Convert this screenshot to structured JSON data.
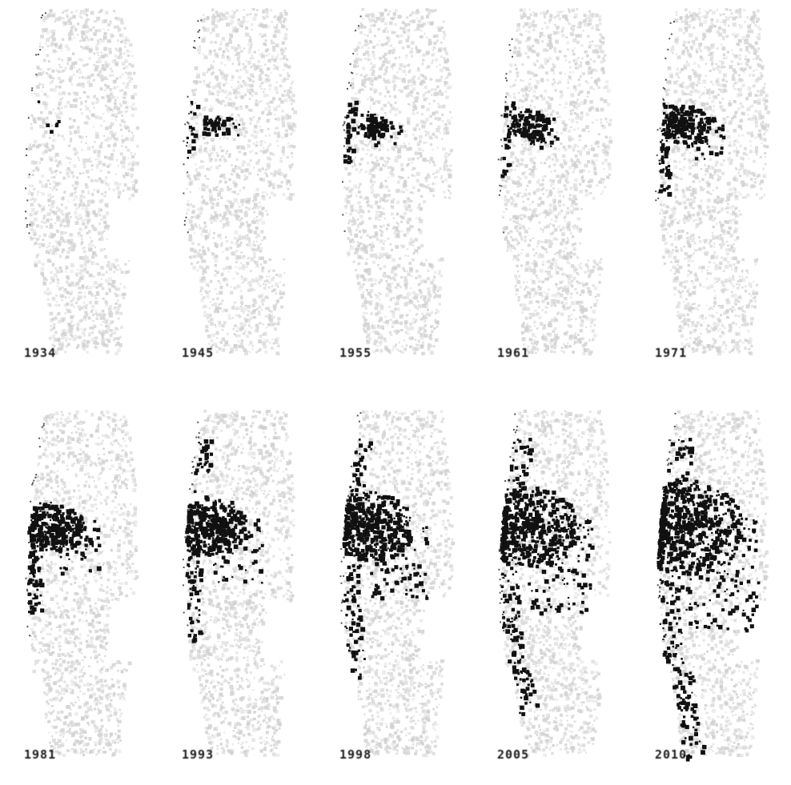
{
  "figure": {
    "colors": {
      "background": "#ffffff",
      "base_region": "#cfcfcf",
      "urban_area": "#111111",
      "label": "#1a1a1a"
    },
    "panels": [
      {
        "label": "1934",
        "growth": 0.0
      },
      {
        "label": "1945",
        "growth": 0.06
      },
      {
        "label": "1955",
        "growth": 0.12
      },
      {
        "label": "1961",
        "growth": 0.18
      },
      {
        "label": "1971",
        "growth": 0.28
      },
      {
        "label": "1981",
        "growth": 0.4
      },
      {
        "label": "1993",
        "growth": 0.52
      },
      {
        "label": "1998",
        "growth": 0.66
      },
      {
        "label": "2005",
        "growth": 0.82
      },
      {
        "label": "2010",
        "growth": 1.0
      }
    ]
  }
}
